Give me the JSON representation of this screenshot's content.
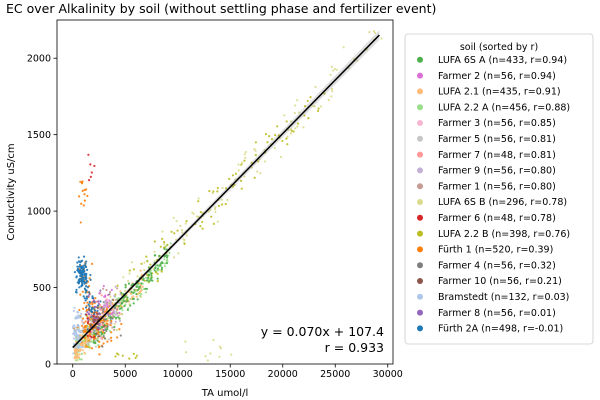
{
  "chart_data": {
    "type": "scatter",
    "title": "EC over Alkalinity by soil (without settling phase and fertilizer event)",
    "xlabel": "TA umol/l",
    "ylabel": "Conductivity uS/cm",
    "xlim": [
      -1500,
      30500
    ],
    "ylim": [
      0,
      2250
    ],
    "xticks": [
      0,
      5000,
      10000,
      15000,
      20000,
      25000,
      30000
    ],
    "yticks": [
      0,
      500,
      1000,
      1500,
      2000
    ],
    "grid": false,
    "legend": {
      "title": "soil  (sorted by r)",
      "placement": "outside-right",
      "entries": [
        {
          "label": "LUFA 6S A  (n=433, r=0.94)",
          "color": "#4daf4a"
        },
        {
          "label": "Farmer 2  (n=56, r=0.94)",
          "color": "#da70d6"
        },
        {
          "label": "LUFA 2.1  (n=435, r=0.91)",
          "color": "#ffbb78"
        },
        {
          "label": "LUFA 2.2 A  (n=456, r=0.88)",
          "color": "#98df8a"
        },
        {
          "label": "Farmer 3  (n=56, r=0.85)",
          "color": "#f7b6d2"
        },
        {
          "label": "Farmer 5  (n=56, r=0.81)",
          "color": "#c7c7c7"
        },
        {
          "label": "Farmer 7  (n=48, r=0.81)",
          "color": "#ff9896"
        },
        {
          "label": "Farmer 9  (n=56, r=0.80)",
          "color": "#c5b0d5"
        },
        {
          "label": "Farmer 1  (n=56, r=0.80)",
          "color": "#c49c94"
        },
        {
          "label": "LUFA 6S B  (n=296, r=0.78)",
          "color": "#dbdb8d"
        },
        {
          "label": "Farmer 6  (n=48, r=0.78)",
          "color": "#d62728"
        },
        {
          "label": "LUFA 2.2 B  (n=398, r=0.76)",
          "color": "#bcbd22"
        },
        {
          "label": "Fürth 1  (n=520, r=0.39)",
          "color": "#ff7f0e"
        },
        {
          "label": "Farmer 4  (n=56, r=0.32)",
          "color": "#7f7f7f"
        },
        {
          "label": "Farmer 10  (n=56, r=0.21)",
          "color": "#8c564b"
        },
        {
          "label": "Bramstedt  (n=132, r=0.03)",
          "color": "#aec7e8"
        },
        {
          "label": "Farmer 8  (n=56, r=0.01)",
          "color": "#9467bd"
        },
        {
          "label": "Fürth 2A  (n=498, r=-0.01)",
          "color": "#1f77b4"
        }
      ]
    },
    "regression": {
      "slope": 0.07,
      "intercept": 107.4,
      "x_range": [
        0,
        29200
      ],
      "color": "#000000",
      "equation_label": "y = 0.070x + 107.4",
      "r_label": "r = 0.933"
    }
  }
}
